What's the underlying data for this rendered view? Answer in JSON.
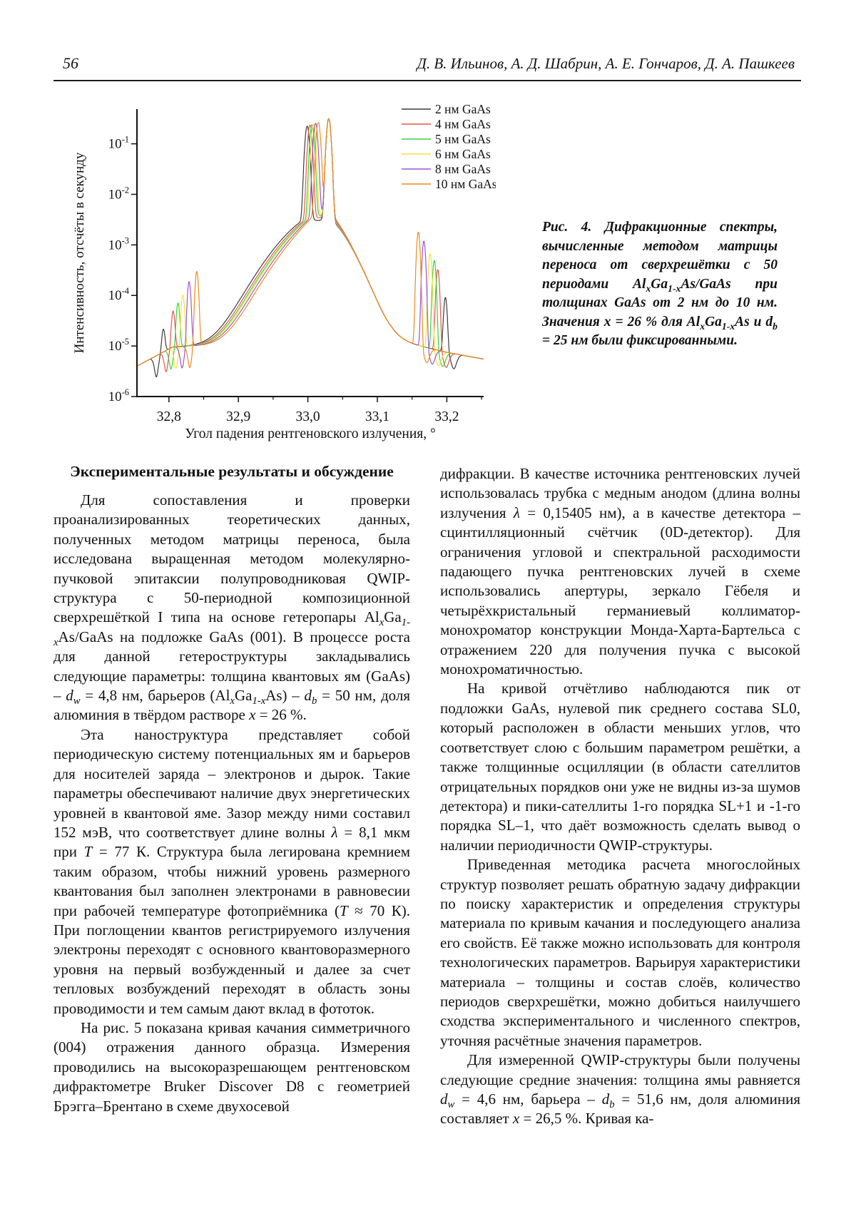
{
  "page": {
    "number": "56",
    "authors": "Д. В. Ильинов, А. Д. Шабрин, А. Е. Гончаров, Д. А. Пашкеев"
  },
  "figure": {
    "caption": "Рис. 4. Дифракционные спектры, вычисленные методом матрицы переноса от сверхрешётки с 50 периодами Al[[x]]Ga[[1-x]]As/GaAs при толщинах GaAs от 2 нм до 10 нм. Значения {{x}} = 26 % для Al[[x]]Ga[[1-x]]As и {{d}}[[b]] = 25 нм были фиксированными."
  },
  "chart_data": {
    "type": "line",
    "title": "",
    "xlabel": "Угол падения рентгеновского излучения, °",
    "ylabel": "Интенсивность, отсчёты в секунду",
    "y_scale": "log",
    "grid": false,
    "legend_position": "top-right",
    "xlim": [
      32.754,
      33.253
    ],
    "ylim": [
      1e-06,
      0.49
    ],
    "x_ticks": [
      32.8,
      32.9,
      33.0,
      33.1,
      33.2
    ],
    "x_tick_labels": [
      "32,8",
      "32,9",
      "33,0",
      "33,1",
      "33,2"
    ],
    "x_minor_ticks": [
      32.85,
      32.95,
      33.05,
      33.15,
      33.25
    ],
    "y_tick_exponents": [
      -1,
      -2,
      -3,
      -4,
      -5,
      -6
    ],
    "substrate_peak": {
      "x": 33.03,
      "intensity": 0.31
    },
    "valley_intensity": 0.008,
    "background_anchors": [
      [
        32.754,
        4e-06
      ],
      [
        32.805,
        9.5e-06
      ],
      [
        33.0,
        1.1e-05
      ],
      [
        33.12,
        1.35e-05
      ],
      [
        33.2,
        7.5e-06
      ],
      [
        33.253,
        5.5e-06
      ]
    ],
    "series": [
      {
        "label": "2 нм GaAs",
        "color": "#3c3c3c",
        "sl0_x": 32.999,
        "sl0_intensity": 0.22,
        "sat_minus1_x": 32.792,
        "sat_minus1_intensity": 1.4e-05,
        "sat_plus1_x": 33.198,
        "sat_plus1_intensity": 8.5e-05
      },
      {
        "label": "4 нм GaAs",
        "color": "#e8544d",
        "sl0_x": 33.003,
        "sl0_intensity": 0.23,
        "sat_minus1_x": 32.806,
        "sat_minus1_intensity": 4e-05,
        "sat_plus1_x": 33.187,
        "sat_plus1_intensity": 0.00032
      },
      {
        "label": "5 нм GaAs",
        "color": "#3bd43b",
        "sl0_x": 33.006,
        "sl0_intensity": 0.235,
        "sat_minus1_x": 32.813,
        "sat_minus1_intensity": 6.2e-05,
        "sat_plus1_x": 33.182,
        "sat_plus1_intensity": 0.00049
      },
      {
        "label": "6 нм GaAs",
        "color": "#f2e43c",
        "sl0_x": 33.008,
        "sl0_intensity": 0.24,
        "sat_minus1_x": 32.82,
        "sat_minus1_intensity": 9.3e-05,
        "sat_plus1_x": 33.176,
        "sat_plus1_intensity": 0.00067
      },
      {
        "label": "8 нм GaAs",
        "color": "#9b55d3",
        "sl0_x": 33.011,
        "sl0_intensity": 0.25,
        "sat_minus1_x": 32.829,
        "sat_minus1_intensity": 0.00018,
        "sat_plus1_x": 33.167,
        "sat_plus1_intensity": 0.0012
      },
      {
        "label": "10 нм GaAs",
        "color": "#ef8b1e",
        "sl0_x": 33.015,
        "sl0_intensity": 0.26,
        "sat_minus1_x": 32.84,
        "sat_minus1_intensity": 0.00029,
        "sat_plus1_x": 33.159,
        "sat_plus1_intensity": 0.0018
      }
    ]
  },
  "sections": {
    "heading": "Экспериментальные результаты и обсуждение",
    "left_column": [
      "Для сопоставления и проверки проанализированных теоретических данных, полученных методом матрицы переноса, была исследована выращенная методом молекулярно-пучковой эпитаксии полупроводниковая QWIP-структура с 50-периодной композиционной сверхрешёткой I типа на основе гетеропары Al[[x]]Ga[[1-x]]As/GaAs на подложке GaAs (001). В процессе роста для данной гетероструктуры закладывались следующие параметры: толщина квантовых ям (GaAs) – {{d}}[[w]] = 4,8 нм, барьеров (Al[[x]]Ga[[1-x]]As) – {{d}}[[b]] = 50 нм, доля алюминия в твёрдом растворе {{x}} = 26 %.",
      "Эта наноструктура представляет собой периодическую систему потенциальных ям и барьеров для носителей заряда – электронов и дырок. Такие параметры обеспечивают наличие двух энергетических уровней в квантовой яме. Зазор между ними составил 152 мэВ, что соответствует длине волны {{λ}} = 8,1 мкм при {{T}} = 77 К. Структура была легирована кремнием таким образом, чтобы нижний уровень размерного квантования был заполнен электронами в равновесии при рабочей температуре фотоприёмника ({{T}} ≈ 70 К). При поглощении квантов регистрируемого излучения электроны переходят с основного квантоворазмерного уровня на первый возбужденный и далее за счет тепловых возбуждений переходят в область зоны проводимости и тем самым дают вклад в фототок.",
      "На рис. 5 показана кривая качания симметричного (004) отражения данного образца. Измерения проводились на высокоразрешающем рентгеновском дифрактометре Bruker Discover D8 с геометрией Брэгга–Брентано в схеме двухосевой"
    ],
    "right_column": [
      "дифракции. В качестве источника рентгеновских лучей использовалась трубка с медным анодом (длина волны излучения {{λ}} = 0,15405 нм), а в качестве детектора – сцинтилляционный счётчик (0D-детектор). Для ограничения угловой и спектральной расходимости падающего пучка рентгеновских лучей в схеме использовались апертуры, зеркало Гёбеля и четырёхкристальный германиевый коллиматор-монохроматор конструкции Монда-Харта-Бартельса с отражением 220 для получения пучка с высокой монохроматичностью.",
      "На кривой отчётливо наблюдаются пик от подложки GaAs, нулевой пик среднего состава SL0, который расположен в области меньших углов, что соответствует слою с большим параметром решётки, а также толщинные осцилляции (в области сателлитов отрицательных порядков они уже не видны из-за шумов детектора) и пики-сателлиты 1-го порядка SL+1 и -1-го порядка SL–1, что даёт возможность сделать вывод о наличии периодичности QWIP-структуры.",
      "Приведенная методика расчета многослойных структур позволяет решать обратную задачу дифракции по поиску характеристик и определения структуры материала по кривым качания и последующего анализа его свойств. Её также можно использовать для контроля технологических параметров. Варьируя характеристики материала – толщины и состав слоёв, количество периодов сверхрешётки, можно добиться наилучшего сходства экспериментального и численного спектров, уточняя расчётные значения параметров.",
      "Для измеренной QWIP-структуры были получены следующие средние значения: толщина ямы равняется {{d}}[[w]] = 4,6 нм, барьера – {{d}}[[b]] = 51,6 нм, доля алюминия составляет {{x}} = 26,5 %. Кривая ка-"
    ]
  }
}
